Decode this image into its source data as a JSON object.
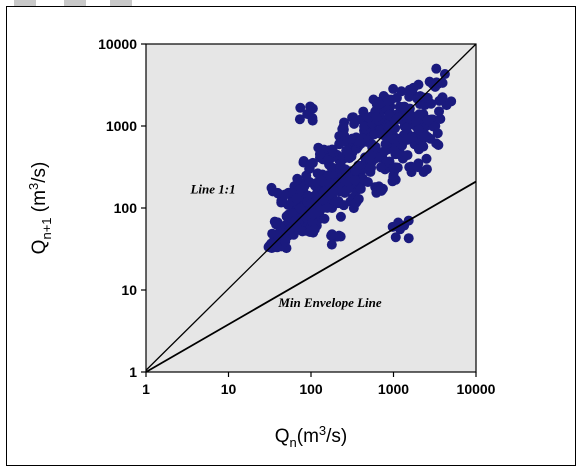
{
  "chart_data": {
    "type": "scatter",
    "xscale": "log",
    "yscale": "log",
    "xlim": [
      1,
      10000
    ],
    "ylim": [
      1,
      10000
    ],
    "xticks": [
      "1",
      "10",
      "100",
      "1000",
      "10000"
    ],
    "yticks": [
      "1",
      "10",
      "100",
      "1000",
      "10000"
    ],
    "xlabel": {
      "main": "Q",
      "sub": "n",
      "unit": "(m",
      "sup": "3",
      "unit_end": "/s)"
    },
    "ylabel": {
      "main": "Q",
      "sub": "n+1",
      "unit": " (m",
      "sup": "3",
      "unit_end": "/s)"
    },
    "grid": false,
    "background": "#e6e6e6",
    "marker_color": "#1a1a7e",
    "annotations": [
      {
        "text": "Line 1:1",
        "x": 6.5,
        "y": 150
      },
      {
        "text": "Min Envelope Line",
        "x": 170,
        "y": 6.2
      }
    ],
    "lines": [
      {
        "name": "Line 1:1",
        "x": [
          1,
          10000
        ],
        "y": [
          1.05,
          10000
        ]
      },
      {
        "name": "Min Envelope Line",
        "x": [
          1,
          10000
        ],
        "y": [
          1.0,
          210
        ]
      }
    ],
    "cloud": {
      "note": "dense point cloud approximated by axis values",
      "points": [
        [
          32,
          34
        ],
        [
          36,
          42
        ],
        [
          40,
          38
        ],
        [
          45,
          55
        ],
        [
          50,
          48
        ],
        [
          55,
          70
        ],
        [
          60,
          60
        ],
        [
          65,
          85
        ],
        [
          70,
          65
        ],
        [
          75,
          110
        ],
        [
          80,
          75
        ],
        [
          90,
          95
        ],
        [
          100,
          130
        ],
        [
          110,
          90
        ],
        [
          120,
          160
        ],
        [
          130,
          110
        ],
        [
          140,
          200
        ],
        [
          150,
          120
        ],
        [
          170,
          250
        ],
        [
          180,
          140
        ],
        [
          200,
          300
        ],
        [
          220,
          160
        ],
        [
          250,
          400
        ],
        [
          270,
          190
        ],
        [
          300,
          500
        ],
        [
          330,
          220
        ],
        [
          360,
          650
        ],
        [
          400,
          280
        ],
        [
          450,
          800
        ],
        [
          500,
          330
        ],
        [
          550,
          1000
        ],
        [
          600,
          400
        ],
        [
          650,
          1300
        ],
        [
          700,
          460
        ],
        [
          800,
          1600
        ],
        [
          850,
          520
        ],
        [
          900,
          2000
        ],
        [
          1000,
          600
        ],
        [
          1100,
          2200
        ],
        [
          1200,
          700
        ],
        [
          1300,
          1500
        ],
        [
          1500,
          800
        ],
        [
          1700,
          2500
        ],
        [
          2000,
          900
        ],
        [
          2300,
          1400
        ],
        [
          2600,
          2200
        ],
        [
          3000,
          1200
        ],
        [
          3200,
          3000
        ],
        [
          1200,
          55
        ],
        [
          90,
          1400
        ],
        [
          40,
          150
        ],
        [
          3300,
          5000
        ],
        [
          4200,
          4300
        ],
        [
          5000,
          2000
        ],
        [
          4400,
          1800
        ],
        [
          80,
          200
        ],
        [
          300,
          120
        ],
        [
          600,
          180
        ],
        [
          1000,
          250
        ],
        [
          2000,
          350
        ],
        [
          200,
          45
        ],
        [
          100,
          60
        ],
        [
          60,
          120
        ],
        [
          150,
          450
        ],
        [
          250,
          900
        ],
        [
          400,
          1200
        ],
        [
          700,
          1700
        ],
        [
          120,
          70
        ],
        [
          180,
          100
        ],
        [
          350,
          160
        ],
        [
          500,
          700
        ],
        [
          800,
          300
        ],
        [
          1300,
          400
        ],
        [
          1800,
          600
        ],
        [
          2500,
          1000
        ],
        [
          2800,
          700
        ],
        [
          1600,
          1100
        ],
        [
          700,
          900
        ],
        [
          450,
          350
        ],
        [
          280,
          250
        ],
        [
          160,
          180
        ],
        [
          110,
          140
        ],
        [
          95,
          300
        ],
        [
          130,
          450
        ],
        [
          220,
          600
        ],
        [
          600,
          1500
        ],
        [
          900,
          1200
        ]
      ]
    }
  }
}
